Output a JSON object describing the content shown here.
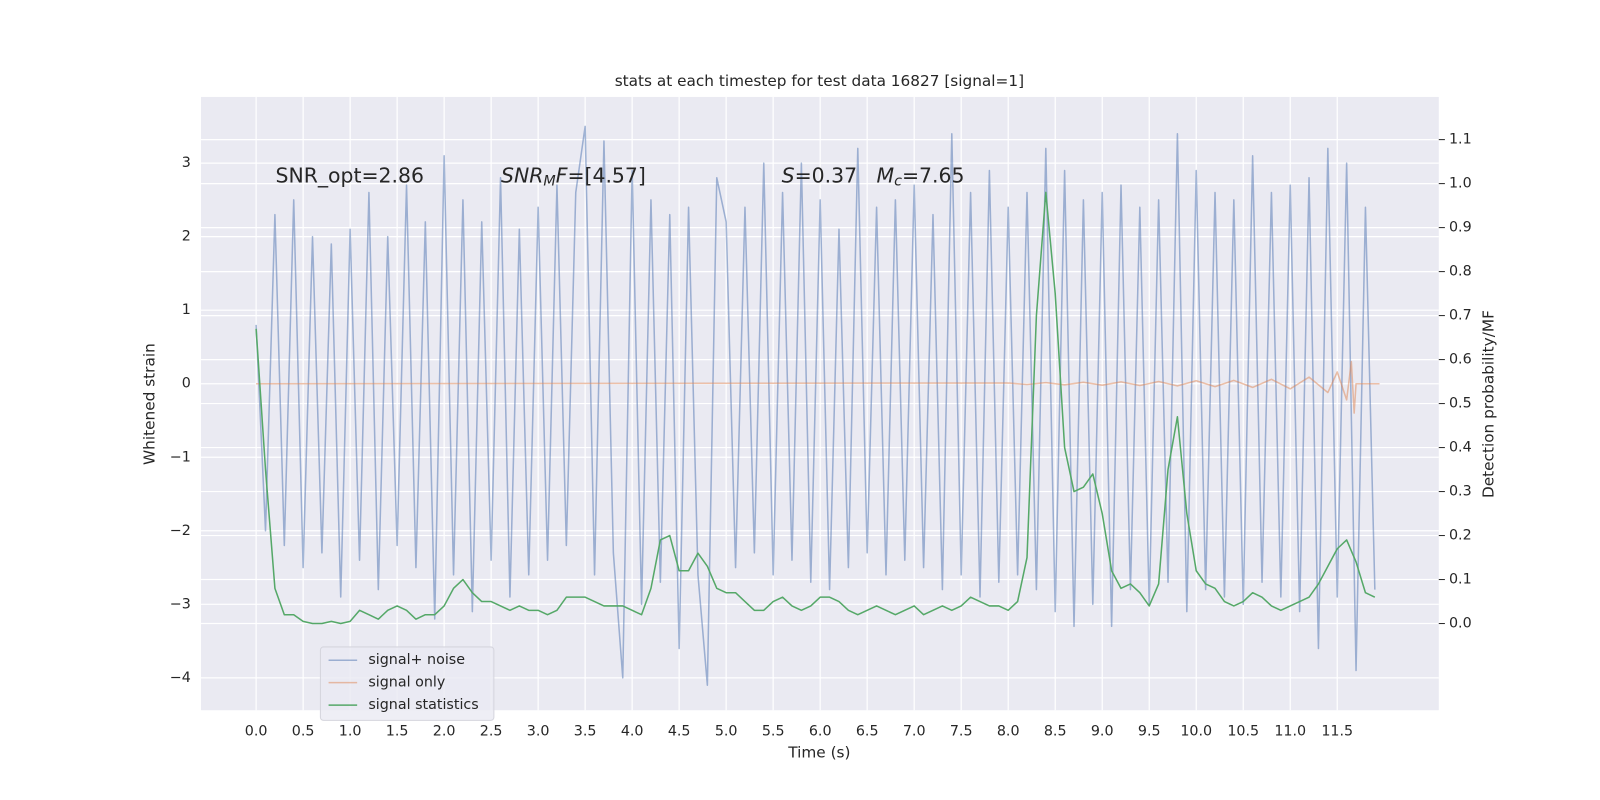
{
  "chart_data": {
    "type": "line",
    "title": "stats at each timestep for test data 16827 [signal=1]",
    "xlabel": "Time (s)",
    "ylabel": "Whitened strain",
    "y2label": "Detection probability/MF",
    "xlim": [
      -0.586,
      12.58
    ],
    "ylim": [
      -4.44,
      3.9
    ],
    "y2lim": [
      -0.197,
      1.197
    ],
    "grid": true,
    "legend": "lower left",
    "xticks": [
      {
        "value": 0,
        "label": "0.0"
      },
      {
        "value": 0.5,
        "label": "0.5"
      },
      {
        "value": 1,
        "label": "1.0"
      },
      {
        "value": 1.5,
        "label": "1.5"
      },
      {
        "value": 2,
        "label": "2.0"
      },
      {
        "value": 2.5,
        "label": "2.5"
      },
      {
        "value": 3,
        "label": "3.0"
      },
      {
        "value": 3.5,
        "label": "3.5"
      },
      {
        "value": 4,
        "label": "4.0"
      },
      {
        "value": 4.5,
        "label": "4.5"
      },
      {
        "value": 5,
        "label": "5.0"
      },
      {
        "value": 5.5,
        "label": "5.5"
      },
      {
        "value": 6,
        "label": "6.0"
      },
      {
        "value": 6.5,
        "label": "6.5"
      },
      {
        "value": 7,
        "label": "7.0"
      },
      {
        "value": 7.5,
        "label": "7.5"
      },
      {
        "value": 8,
        "label": "8.0"
      },
      {
        "value": 8.5,
        "label": "8.5"
      },
      {
        "value": 9,
        "label": "9.0"
      },
      {
        "value": 9.5,
        "label": "9.5"
      },
      {
        "value": 10,
        "label": "10.0"
      },
      {
        "value": 10.5,
        "label": "10.5"
      },
      {
        "value": 11,
        "label": "11.0"
      },
      {
        "value": 11.5,
        "label": "11.5"
      }
    ],
    "yticks": [
      {
        "value": -4,
        "label": "−4"
      },
      {
        "value": -3,
        "label": "−3"
      },
      {
        "value": -2,
        "label": "−2"
      },
      {
        "value": -1,
        "label": "−1"
      },
      0,
      1,
      2,
      3
    ],
    "y2ticks": [
      {
        "value": 0,
        "label": "0.0"
      },
      {
        "value": 0.1,
        "label": "0.1"
      },
      {
        "value": 0.2,
        "label": "0.2"
      },
      {
        "value": 0.3,
        "label": "0.3"
      },
      {
        "value": 0.4,
        "label": "0.4"
      },
      {
        "value": 0.5,
        "label": "0.5"
      },
      {
        "value": 0.6,
        "label": "0.6"
      },
      {
        "value": 0.7,
        "label": "0.7"
      },
      {
        "value": 0.8,
        "label": "0.8"
      },
      {
        "value": 0.9,
        "label": "0.9"
      },
      {
        "value": 1,
        "label": "1.0"
      },
      {
        "value": 1.1,
        "label": "1.1"
      }
    ],
    "annotations": [
      {
        "parts": [
          {
            "text": "SNR_opt=2.86"
          }
        ]
      },
      {
        "parts": [
          {
            "text": "SNR",
            "style": "italic"
          },
          {
            "text": "M",
            "style": "italic-sub"
          },
          {
            "text": "F",
            "style": "italic"
          },
          {
            "text": "=[4.57]"
          }
        ]
      },
      {
        "parts": [
          {
            "text": "S",
            "style": "italic"
          },
          {
            "text": "=0.37"
          }
        ]
      },
      {
        "parts": [
          {
            "text": "M",
            "style": "italic"
          },
          {
            "text": "c",
            "style": "italic-sub"
          },
          {
            "text": "=7.65"
          }
        ]
      }
    ],
    "x": [
      0,
      0.1,
      0.2,
      0.3,
      0.4,
      0.5,
      0.6,
      0.7,
      0.8,
      0.9,
      1,
      1.1,
      1.2,
      1.3,
      1.4,
      1.5,
      1.6,
      1.7,
      1.8,
      1.9,
      2,
      2.1,
      2.2,
      2.3,
      2.4,
      2.5,
      2.6,
      2.7,
      2.8,
      2.9,
      3,
      3.1,
      3.2,
      3.3,
      3.4,
      3.5,
      3.6,
      3.7,
      3.8,
      3.9,
      4,
      4.1,
      4.2,
      4.3,
      4.4,
      4.5,
      4.6,
      4.7,
      4.8,
      4.9,
      5,
      5.1,
      5.2,
      5.3,
      5.4,
      5.5,
      5.6,
      5.7,
      5.8,
      5.9,
      6,
      6.1,
      6.2,
      6.3,
      6.4,
      6.5,
      6.6,
      6.7,
      6.8,
      6.9,
      7,
      7.1,
      7.2,
      7.3,
      7.4,
      7.5,
      7.6,
      7.7,
      7.8,
      7.9,
      8,
      8.1,
      8.2,
      8.3,
      8.4,
      8.5,
      8.6,
      8.7,
      8.8,
      8.9,
      9,
      9.1,
      9.2,
      9.3,
      9.4,
      9.5,
      9.6,
      9.7,
      9.8,
      9.9,
      10,
      10.1,
      10.2,
      10.3,
      10.4,
      10.5,
      10.6,
      10.7,
      10.8,
      10.9,
      11,
      11.1,
      11.2,
      11.3,
      11.4,
      11.5,
      11.6,
      11.7,
      11.8,
      11.9
    ],
    "series": [
      {
        "name": "signal+ noise",
        "color": "#4c72b0",
        "opacity": 0.5,
        "values": [
          0.8,
          -2.0,
          2.3,
          -2.2,
          2.5,
          -2.5,
          2.0,
          -2.3,
          1.9,
          -2.9,
          2.1,
          -2.4,
          2.6,
          -2.8,
          2.0,
          -2.2,
          2.7,
          -2.5,
          2.2,
          -3.2,
          3.1,
          -2.6,
          2.5,
          -3.1,
          2.2,
          -2.4,
          2.8,
          -2.9,
          2.1,
          -2.6,
          2.4,
          -2.4,
          2.7,
          -2.2,
          2.6,
          3.5,
          -2.6,
          3.3,
          -2.3,
          -4.0,
          2.9,
          -3.0,
          2.5,
          -2.7,
          2.3,
          -3.6,
          2.4,
          -2.6,
          -4.1,
          2.8,
          2.2,
          -2.5,
          2.4,
          -2.3,
          3.0,
          -2.6,
          2.6,
          -2.4,
          3.0,
          -2.7,
          2.5,
          -2.8,
          2.1,
          -2.5,
          3.2,
          -2.3,
          2.4,
          -2.6,
          2.5,
          -2.4,
          2.7,
          -2.5,
          2.3,
          -2.8,
          3.4,
          -2.6,
          2.6,
          -2.9,
          2.9,
          -2.7,
          2.4,
          -2.6,
          2.6,
          -2.8,
          3.2,
          -3.1,
          2.9,
          -3.3,
          2.5,
          -3.0,
          2.6,
          -3.3,
          2.7,
          -2.8,
          2.4,
          -3.0,
          2.5,
          -2.7,
          3.4,
          -3.1,
          2.9,
          -2.8,
          2.6,
          -2.9,
          2.5,
          -3.0,
          3.1,
          -2.7,
          2.6,
          -2.9,
          2.7,
          -3.1,
          2.8,
          -3.6,
          3.2,
          -2.9,
          3.0,
          -3.9,
          2.4,
          -2.8
        ]
      },
      {
        "name": "signal only",
        "color": "#dd8452",
        "opacity": 0.5,
        "x": [
          0,
          8.0,
          8.2,
          8.4,
          8.6,
          8.8,
          9.0,
          9.2,
          9.4,
          9.6,
          9.8,
          10.0,
          10.2,
          10.4,
          10.6,
          10.8,
          11.0,
          11.2,
          11.4,
          11.5,
          11.6,
          11.65,
          11.68,
          11.7,
          11.95
        ],
        "values": [
          0,
          0.01,
          -0.01,
          0.015,
          -0.015,
          0.02,
          -0.02,
          0.025,
          -0.025,
          0.03,
          -0.03,
          0.04,
          -0.04,
          0.045,
          -0.05,
          0.06,
          -0.07,
          0.09,
          -0.12,
          0.16,
          -0.22,
          0.3,
          -0.4,
          0,
          0
        ]
      },
      {
        "name": "signal statistics",
        "color": "#55a868",
        "opacity": 1,
        "axis": "y2",
        "values": [
          0.67,
          0.35,
          0.08,
          0.02,
          0.02,
          0.005,
          0,
          0,
          0.005,
          0,
          0.005,
          0.03,
          0.02,
          0.01,
          0.03,
          0.04,
          0.03,
          0.01,
          0.02,
          0.02,
          0.04,
          0.08,
          0.1,
          0.07,
          0.05,
          0.05,
          0.04,
          0.03,
          0.04,
          0.03,
          0.03,
          0.02,
          0.03,
          0.06,
          0.06,
          0.06,
          0.05,
          0.04,
          0.04,
          0.04,
          0.03,
          0.02,
          0.08,
          0.19,
          0.2,
          0.12,
          0.12,
          0.16,
          0.13,
          0.08,
          0.07,
          0.07,
          0.05,
          0.03,
          0.03,
          0.05,
          0.06,
          0.04,
          0.03,
          0.04,
          0.06,
          0.06,
          0.05,
          0.03,
          0.02,
          0.03,
          0.04,
          0.03,
          0.02,
          0.03,
          0.04,
          0.02,
          0.03,
          0.04,
          0.03,
          0.04,
          0.06,
          0.05,
          0.04,
          0.04,
          0.03,
          0.05,
          0.15,
          0.7,
          0.98,
          0.75,
          0.4,
          0.3,
          0.31,
          0.34,
          0.25,
          0.12,
          0.08,
          0.09,
          0.07,
          0.04,
          0.09,
          0.35,
          0.47,
          0.25,
          0.12,
          0.09,
          0.08,
          0.05,
          0.04,
          0.05,
          0.07,
          0.06,
          0.04,
          0.03,
          0.04,
          0.05,
          0.06,
          0.09,
          0.13,
          0.17,
          0.19,
          0.14,
          0.07,
          0.06
        ]
      }
    ]
  }
}
